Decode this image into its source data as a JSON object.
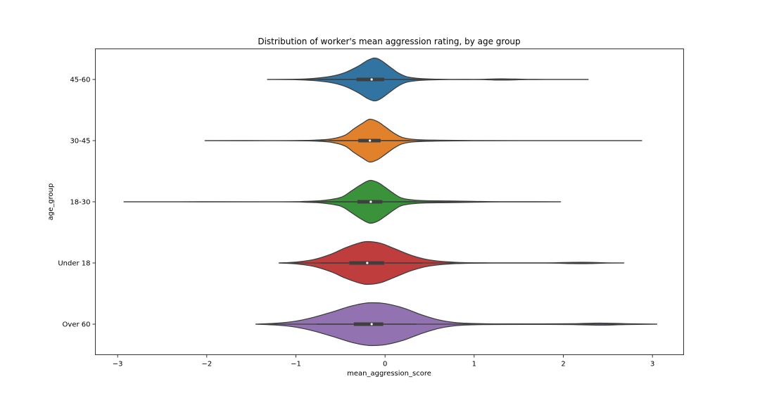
{
  "chart_data": {
    "type": "violin",
    "title": "Distribution of worker's mean aggression rating, by age group",
    "xlabel": "mean_aggression_score",
    "ylabel": "age_group",
    "xlim": [
      -3.25,
      3.35
    ],
    "xticks": [
      -3,
      -2,
      -1,
      0,
      1,
      2,
      3
    ],
    "xtick_labels": [
      "−3",
      "−2",
      "−1",
      "0",
      "1",
      "2",
      "3"
    ],
    "grid": false,
    "groups": [
      {
        "label": "45-60",
        "color": "#3274a1",
        "min": -1.32,
        "q1": -0.32,
        "median": -0.15,
        "q3": -0.01,
        "whisker_low": -0.75,
        "whisker_high": 0.38,
        "max": 2.28,
        "density": [
          [
            -1.32,
            0.0
          ],
          [
            -1.0,
            0.01
          ],
          [
            -0.8,
            0.05
          ],
          [
            -0.6,
            0.15
          ],
          [
            -0.45,
            0.32
          ],
          [
            -0.3,
            0.62
          ],
          [
            -0.2,
            0.88
          ],
          [
            -0.12,
            1.0
          ],
          [
            -0.05,
            0.9
          ],
          [
            0.05,
            0.6
          ],
          [
            0.15,
            0.3
          ],
          [
            0.25,
            0.12
          ],
          [
            0.4,
            0.04
          ],
          [
            0.6,
            0.01
          ],
          [
            1.0,
            0.0
          ],
          [
            1.3,
            0.03
          ],
          [
            1.6,
            0.005
          ],
          [
            2.0,
            0.0
          ],
          [
            2.28,
            0.0
          ]
        ]
      },
      {
        "label": "30-45",
        "color": "#e1812c",
        "min": -2.02,
        "q1": -0.3,
        "median": -0.17,
        "q3": -0.05,
        "whisker_low": -0.63,
        "whisker_high": 0.28,
        "max": 2.88,
        "density": [
          [
            -2.02,
            0.0
          ],
          [
            -1.2,
            0.0
          ],
          [
            -0.8,
            0.02
          ],
          [
            -0.6,
            0.08
          ],
          [
            -0.45,
            0.25
          ],
          [
            -0.35,
            0.55
          ],
          [
            -0.25,
            0.82
          ],
          [
            -0.17,
            1.0
          ],
          [
            -0.08,
            0.88
          ],
          [
            0.0,
            0.65
          ],
          [
            0.1,
            0.35
          ],
          [
            0.2,
            0.14
          ],
          [
            0.35,
            0.05
          ],
          [
            0.6,
            0.02
          ],
          [
            1.0,
            0.005
          ],
          [
            1.5,
            0.0
          ],
          [
            2.88,
            0.0
          ]
        ]
      },
      {
        "label": "18-30",
        "color": "#3a923a",
        "min": -2.93,
        "q1": -0.31,
        "median": -0.16,
        "q3": -0.03,
        "whisker_low": -0.72,
        "whisker_high": 0.35,
        "max": 1.97,
        "density": [
          [
            -2.93,
            0.0
          ],
          [
            -1.2,
            0.0
          ],
          [
            -0.9,
            0.02
          ],
          [
            -0.7,
            0.06
          ],
          [
            -0.5,
            0.2
          ],
          [
            -0.38,
            0.5
          ],
          [
            -0.27,
            0.8
          ],
          [
            -0.17,
            1.0
          ],
          [
            -0.08,
            0.9
          ],
          [
            0.0,
            0.68
          ],
          [
            0.1,
            0.38
          ],
          [
            0.2,
            0.16
          ],
          [
            0.4,
            0.06
          ],
          [
            0.7,
            0.04
          ],
          [
            1.0,
            0.02
          ],
          [
            1.3,
            0.005
          ],
          [
            1.97,
            0.0
          ]
        ]
      },
      {
        "label": "Under 18",
        "color": "#c03d3e",
        "min": -1.19,
        "q1": -0.4,
        "median": -0.2,
        "q3": -0.01,
        "whisker_low": -0.72,
        "whisker_high": 0.42,
        "max": 2.68,
        "density": [
          [
            -1.19,
            0.0
          ],
          [
            -1.0,
            0.04
          ],
          [
            -0.8,
            0.16
          ],
          [
            -0.6,
            0.42
          ],
          [
            -0.45,
            0.7
          ],
          [
            -0.3,
            0.92
          ],
          [
            -0.2,
            1.0
          ],
          [
            -0.05,
            0.92
          ],
          [
            0.1,
            0.68
          ],
          [
            0.3,
            0.35
          ],
          [
            0.5,
            0.14
          ],
          [
            0.8,
            0.03
          ],
          [
            1.2,
            0.005
          ],
          [
            1.8,
            0.005
          ],
          [
            2.1,
            0.03
          ],
          [
            2.3,
            0.03
          ],
          [
            2.5,
            0.005
          ],
          [
            2.68,
            0.0
          ]
        ]
      },
      {
        "label": "Over 60",
        "color": "#9372b2",
        "min": -1.45,
        "q1": -0.35,
        "median": -0.15,
        "q3": -0.02,
        "whisker_low": -0.77,
        "whisker_high": 0.35,
        "max": 3.05,
        "density": [
          [
            -1.45,
            0.0
          ],
          [
            -1.2,
            0.05
          ],
          [
            -1.0,
            0.14
          ],
          [
            -0.8,
            0.32
          ],
          [
            -0.6,
            0.56
          ],
          [
            -0.4,
            0.82
          ],
          [
            -0.25,
            0.96
          ],
          [
            -0.15,
            1.0
          ],
          [
            0.0,
            0.96
          ],
          [
            0.2,
            0.76
          ],
          [
            0.4,
            0.45
          ],
          [
            0.6,
            0.2
          ],
          [
            0.8,
            0.07
          ],
          [
            1.1,
            0.02
          ],
          [
            1.6,
            0.01
          ],
          [
            2.1,
            0.02
          ],
          [
            2.4,
            0.05
          ],
          [
            2.7,
            0.02
          ],
          [
            3.05,
            0.0
          ]
        ]
      }
    ]
  }
}
